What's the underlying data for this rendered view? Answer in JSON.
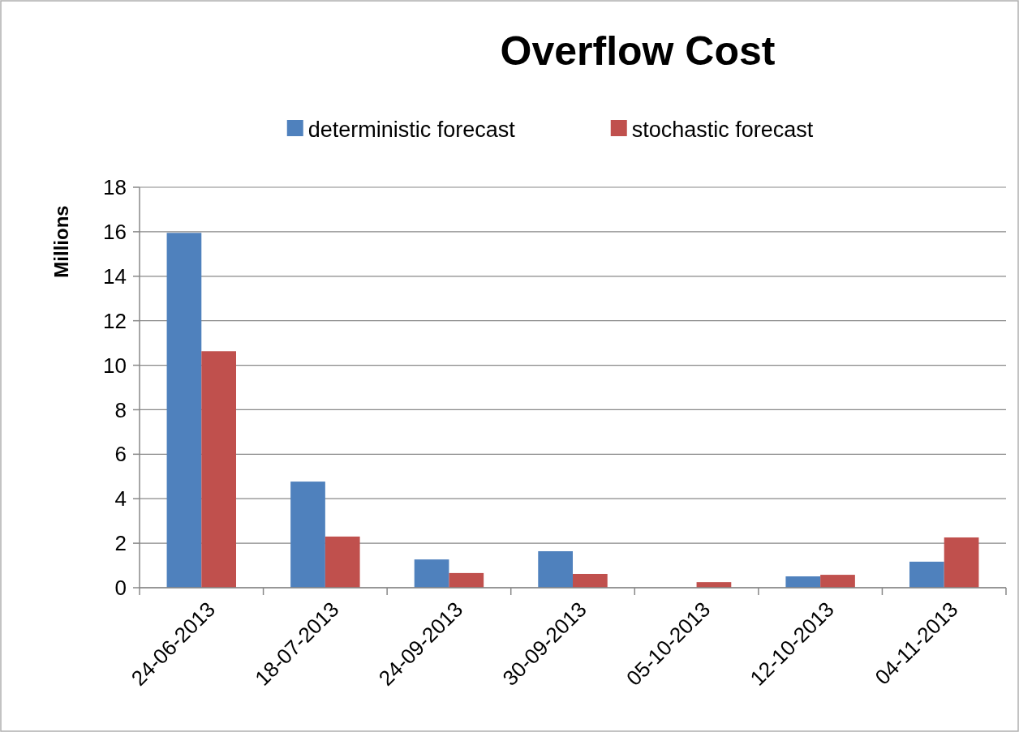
{
  "chart_data": {
    "type": "bar",
    "title": "Overflow Cost",
    "ylabel": "Millions",
    "categories": [
      "24-06-2013",
      "18-07-2013",
      "24-09-2013",
      "30-09-2013",
      "05-10-2013",
      "12-10-2013",
      "04-11-2013"
    ],
    "series": [
      {
        "name": "deterministic forecast",
        "color": "#4f81bd",
        "values": [
          15.95,
          4.77,
          1.27,
          1.64,
          null,
          0.51,
          1.17
        ]
      },
      {
        "name": "stochastic forecast",
        "color": "#c0504d",
        "values": [
          10.63,
          2.3,
          0.66,
          0.62,
          0.25,
          0.58,
          2.26
        ]
      }
    ],
    "ylim": [
      0,
      18
    ],
    "yticks": [
      0,
      2,
      4,
      6,
      8,
      10,
      12,
      14,
      16,
      18
    ],
    "grid": "y",
    "legend": "top"
  }
}
